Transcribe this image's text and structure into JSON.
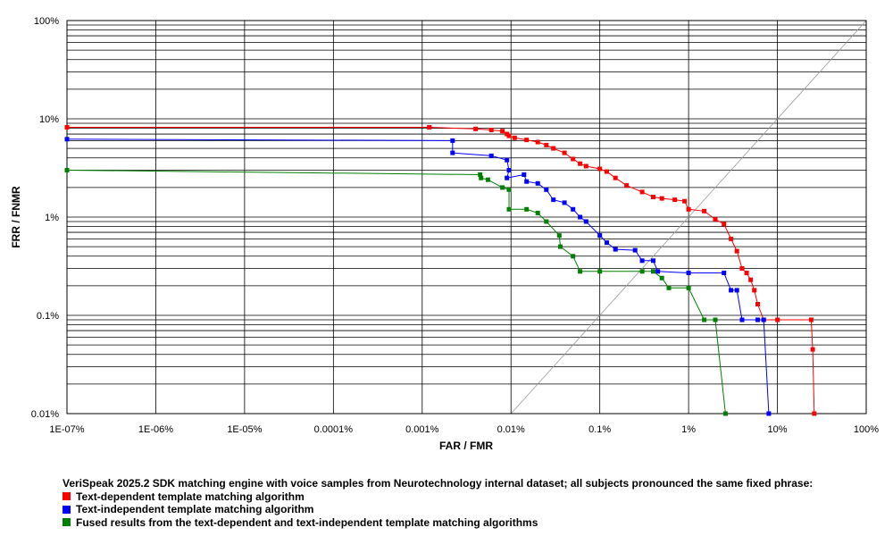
{
  "chart_data": {
    "type": "line",
    "xscale": "log",
    "yscale": "log",
    "xlabel": "FAR / FMR",
    "ylabel": "FRR / FNMR",
    "xlim": [
      1e-07,
      100
    ],
    "ylim": [
      0.01,
      100
    ],
    "x_ticks": [
      "1E-07%",
      "1E-06%",
      "1E-05%",
      "0.0001%",
      "0.001%",
      "0.01%",
      "0.1%",
      "1%",
      "10%",
      "100%"
    ],
    "y_ticks": [
      "0.01%",
      "0.1%",
      "1%",
      "10%",
      "100%"
    ],
    "grid": true,
    "diagonal_line": true,
    "caption": "VeriSpeak 2025.2 SDK matching engine with voice samples from Neurotechnology internal dataset; all subjects pronounced the same fixed phrase:",
    "legend_position": "bottom",
    "series": [
      {
        "name": "Text-dependent template matching algorithm",
        "color": "#ff0000",
        "points": [
          [
            1e-07,
            8.2
          ],
          [
            0.0012,
            8.2
          ],
          [
            0.004,
            7.9
          ],
          [
            0.006,
            7.7
          ],
          [
            0.008,
            7.5
          ],
          [
            0.009,
            7.0
          ],
          [
            0.0095,
            6.7
          ],
          [
            0.011,
            6.4
          ],
          [
            0.015,
            6.1
          ],
          [
            0.02,
            5.8
          ],
          [
            0.025,
            5.4
          ],
          [
            0.03,
            5.0
          ],
          [
            0.04,
            4.5
          ],
          [
            0.05,
            3.9
          ],
          [
            0.06,
            3.5
          ],
          [
            0.07,
            3.3
          ],
          [
            0.1,
            3.1
          ],
          [
            0.12,
            2.9
          ],
          [
            0.15,
            2.5
          ],
          [
            0.2,
            2.1
          ],
          [
            0.3,
            1.8
          ],
          [
            0.4,
            1.6
          ],
          [
            0.5,
            1.55
          ],
          [
            0.7,
            1.5
          ],
          [
            0.9,
            1.45
          ],
          [
            1.0,
            1.2
          ],
          [
            1.5,
            1.15
          ],
          [
            2.0,
            0.95
          ],
          [
            2.5,
            0.85
          ],
          [
            3.0,
            0.6
          ],
          [
            3.5,
            0.45
          ],
          [
            4.0,
            0.3
          ],
          [
            4.5,
            0.27
          ],
          [
            5.0,
            0.23
          ],
          [
            5.5,
            0.18
          ],
          [
            6.0,
            0.13
          ],
          [
            7.0,
            0.09
          ],
          [
            10,
            0.09
          ],
          [
            24,
            0.09
          ],
          [
            25,
            0.045
          ],
          [
            26,
            0.01
          ]
        ]
      },
      {
        "name": "Text-independent template matching algorithm",
        "color": "#0000ff",
        "points": [
          [
            1e-07,
            6.2
          ],
          [
            0.0022,
            6.0
          ],
          [
            0.0022,
            4.5
          ],
          [
            0.006,
            4.2
          ],
          [
            0.009,
            3.8
          ],
          [
            0.0095,
            3.0
          ],
          [
            0.009,
            2.5
          ],
          [
            0.014,
            2.7
          ],
          [
            0.015,
            2.3
          ],
          [
            0.02,
            2.2
          ],
          [
            0.025,
            1.9
          ],
          [
            0.03,
            1.5
          ],
          [
            0.04,
            1.4
          ],
          [
            0.05,
            1.2
          ],
          [
            0.06,
            1.0
          ],
          [
            0.07,
            0.9
          ],
          [
            0.1,
            0.65
          ],
          [
            0.12,
            0.55
          ],
          [
            0.15,
            0.47
          ],
          [
            0.25,
            0.46
          ],
          [
            0.3,
            0.36
          ],
          [
            0.4,
            0.36
          ],
          [
            0.45,
            0.28
          ],
          [
            1.0,
            0.27
          ],
          [
            2.5,
            0.27
          ],
          [
            3.0,
            0.18
          ],
          [
            3.5,
            0.18
          ],
          [
            4.0,
            0.09
          ],
          [
            6.0,
            0.09
          ],
          [
            7.0,
            0.09
          ],
          [
            8.0,
            0.01
          ]
        ]
      },
      {
        "name": "Fused results from the text-dependent and text-independent template matching algorithms",
        "color": "#008000",
        "points": [
          [
            1e-07,
            3.0
          ],
          [
            0.0045,
            2.7
          ],
          [
            0.0046,
            2.5
          ],
          [
            0.0055,
            2.4
          ],
          [
            0.008,
            2.0
          ],
          [
            0.0095,
            1.9
          ],
          [
            0.0095,
            1.2
          ],
          [
            0.015,
            1.2
          ],
          [
            0.02,
            1.1
          ],
          [
            0.025,
            0.9
          ],
          [
            0.035,
            0.65
          ],
          [
            0.036,
            0.5
          ],
          [
            0.05,
            0.4
          ],
          [
            0.06,
            0.28
          ],
          [
            0.1,
            0.28
          ],
          [
            0.3,
            0.28
          ],
          [
            0.4,
            0.28
          ],
          [
            0.5,
            0.24
          ],
          [
            0.6,
            0.19
          ],
          [
            1.0,
            0.19
          ],
          [
            1.5,
            0.09
          ],
          [
            2.0,
            0.09
          ],
          [
            2.6,
            0.01
          ]
        ]
      }
    ]
  }
}
